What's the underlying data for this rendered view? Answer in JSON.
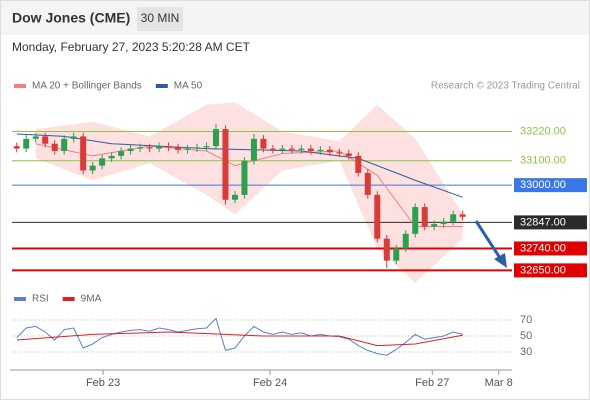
{
  "chart_data": {
    "type": "candlestick",
    "title": "Dow Jones (CME)",
    "timeframe": "30 MIN",
    "timestamp": "Monday, February 27, 2023 5:20:28 AM CET",
    "credit": "Research © 2023 Trading Central",
    "xlim": [
      -0.5,
      52.2
    ],
    "xticks": [
      {
        "value": 9.1,
        "label": "Feb 23"
      },
      {
        "value": 26.7,
        "label": "Feb 24"
      },
      {
        "value": 43.8,
        "label": "Feb 27"
      },
      {
        "value": 50.8,
        "label": "Mar 8"
      }
    ],
    "ylim": [
      32590,
      33370
    ],
    "up_color": "#2e9e4f",
    "down_color": "#d93b3b",
    "open": [
      33160,
      33150,
      33190,
      33200,
      33170,
      33140,
      33190,
      33200,
      33060,
      33080,
      33110,
      33120,
      33140,
      33150,
      33155,
      33150,
      33160,
      33155,
      33145,
      33150,
      33155,
      33160,
      33230,
      32940,
      32960,
      33100,
      33190,
      33150,
      33145,
      33150,
      33145,
      33150,
      33140,
      33145,
      33135,
      33130,
      33120,
      33050,
      32960,
      32780,
      32690,
      32740,
      32800,
      32910,
      32830,
      32840,
      32850,
      32880
    ],
    "high": [
      33175,
      33205,
      33215,
      33215,
      33185,
      33205,
      33215,
      33215,
      33095,
      33125,
      33135,
      33155,
      33165,
      33170,
      33170,
      33175,
      33175,
      33170,
      33165,
      33170,
      33175,
      33250,
      33245,
      32975,
      33115,
      33210,
      33205,
      33165,
      33165,
      33165,
      33165,
      33165,
      33160,
      33160,
      33150,
      33145,
      33135,
      33065,
      32975,
      32795,
      32755,
      32815,
      32925,
      32925,
      32855,
      32865,
      32895,
      32895
    ],
    "low": [
      33135,
      33135,
      33175,
      33155,
      33125,
      33125,
      33175,
      33045,
      33045,
      33065,
      33095,
      33105,
      33125,
      33135,
      33135,
      33135,
      33140,
      33130,
      33130,
      33135,
      33140,
      33145,
      32920,
      32925,
      32945,
      33085,
      33135,
      33130,
      33130,
      33130,
      33130,
      33125,
      33125,
      33120,
      33115,
      33105,
      33035,
      32945,
      32765,
      32660,
      32675,
      32725,
      32785,
      32815,
      32815,
      32825,
      32835,
      32855
    ],
    "close": [
      33150,
      33190,
      33200,
      33170,
      33140,
      33190,
      33200,
      33060,
      33080,
      33110,
      33120,
      33140,
      33150,
      33155,
      33150,
      33160,
      33155,
      33145,
      33150,
      33155,
      33160,
      33230,
      32940,
      32960,
      33100,
      33190,
      33150,
      33145,
      33150,
      33145,
      33150,
      33140,
      33145,
      33135,
      33130,
      33120,
      33050,
      32960,
      32780,
      32690,
      32740,
      32800,
      32910,
      32830,
      32840,
      32850,
      32880,
      32870
    ],
    "overlays": [
      {
        "name": "MA 20 + Bollinger Bands",
        "color": "#f08080",
        "band_color": "#fde0e0",
        "x": [
          2,
          8,
          14,
          20,
          23,
          28,
          34,
          38,
          42,
          47
        ],
        "values": [
          33170,
          33120,
          33160,
          33140,
          33080,
          33130,
          33140,
          33040,
          32830,
          32830
        ],
        "upper": [
          33230,
          33260,
          33200,
          33330,
          33340,
          33220,
          33180,
          33330,
          33190,
          32880
        ],
        "lower": [
          33110,
          33020,
          33090,
          32960,
          32880,
          33060,
          33100,
          32740,
          32600,
          32780
        ]
      },
      {
        "name": "MA 50",
        "color": "#2f5b9e",
        "x": [
          0,
          5,
          10,
          20,
          30,
          36,
          42,
          47
        ],
        "values": [
          33210,
          33200,
          33170,
          33150,
          33140,
          33110,
          33020,
          32950
        ]
      }
    ],
    "levels": [
      {
        "value": 33220,
        "label": "33220.00",
        "color": "#8cc63f",
        "box": false
      },
      {
        "value": 33100,
        "label": "33100.00",
        "color": "#8cc63f",
        "box": false
      },
      {
        "value": 33000,
        "label": "33000.00",
        "color": "#3b78e7",
        "box": true
      },
      {
        "value": 32847,
        "label": "32847.00",
        "color": "#2b2b2b",
        "box": true
      },
      {
        "value": 32740,
        "label": "32740.00",
        "color": "#e00000",
        "box": true
      },
      {
        "value": 32650,
        "label": "32650.00",
        "color": "#e00000",
        "box": true
      }
    ],
    "rsi": {
      "ylim": [
        10,
        82.5
      ],
      "yticks": [
        70,
        50,
        30
      ],
      "series": [
        {
          "name": "RSI",
          "color": "#5b7fd6",
          "values": [
            48,
            60,
            62,
            55,
            45,
            58,
            60,
            35,
            40,
            48,
            52,
            55,
            57,
            58,
            56,
            60,
            58,
            55,
            57,
            59,
            60,
            72,
            32,
            35,
            50,
            62,
            55,
            52,
            55,
            52,
            54,
            50,
            52,
            50,
            49,
            46,
            38,
            32,
            28,
            26,
            33,
            42,
            52,
            46,
            48,
            50,
            55,
            52
          ]
        },
        {
          "name": "9MA",
          "color": "#e02020",
          "x": [
            0,
            8,
            16,
            22,
            26,
            34,
            38,
            42,
            47
          ],
          "values": [
            45,
            52,
            55,
            52,
            50,
            50,
            38,
            40,
            51
          ]
        }
      ]
    }
  }
}
